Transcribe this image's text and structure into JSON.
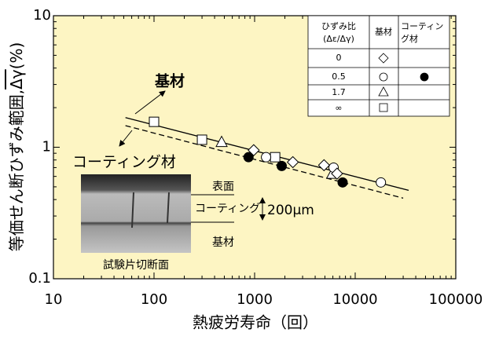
{
  "chart_data": {
    "type": "scatter",
    "x_label": "熱疲労寿命（回）",
    "y_label": "等価せん断ひずみ範囲,",
    "y_label_symbol": "Δγ",
    "y_label_unit": "(%)",
    "log_x": true,
    "log_y": true,
    "xlim": [
      10,
      100000
    ],
    "xticks": [
      10,
      100,
      1000,
      10000,
      100000
    ],
    "ylim": [
      0.1,
      10
    ],
    "yticks": [
      0.1,
      1,
      10
    ],
    "background": "#fdf5c3",
    "series": [
      {
        "marker": "square",
        "x": [
          100,
          300,
          1600
        ],
        "values": [
          1.56,
          1.14,
          0.84
        ]
      },
      {
        "marker": "triangle",
        "x": [
          470,
          5900
        ],
        "values": [
          1.1,
          0.63
        ]
      },
      {
        "marker": "circle",
        "x": [
          1300,
          6100,
          18000
        ],
        "values": [
          0.84,
          0.7,
          0.54
        ]
      },
      {
        "marker": "diamond",
        "x": [
          980,
          2400,
          4900,
          6600
        ],
        "values": [
          0.95,
          0.77,
          0.73,
          0.63
        ]
      },
      {
        "marker": "filled-circle",
        "x": [
          870,
          1860,
          7500
        ],
        "values": [
          0.84,
          0.72,
          0.54
        ]
      }
    ],
    "lines": [
      {
        "style": "solid",
        "x": [
          52,
          34000
        ],
        "values": [
          1.68,
          0.47
        ]
      },
      {
        "style": "dashed",
        "x": [
          52,
          30000
        ],
        "values": [
          1.46,
          0.41
        ]
      }
    ],
    "annotations": {
      "substrate": "基材",
      "coating": "コーティング材"
    },
    "inset": {
      "surface": "表面",
      "coating": "コーティング",
      "thickness": "200μm",
      "substrate": "基材",
      "caption": "試験片切断面"
    },
    "legend_table": {
      "header": [
        "ひずみ比",
        "(Δε/Δγ)",
        "基材",
        "コーティン",
        "グ材"
      ],
      "rows": [
        "0",
        "0.5",
        "1.7",
        "∞"
      ]
    }
  }
}
